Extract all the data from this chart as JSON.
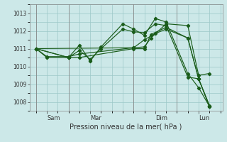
{
  "background_color": "#cce8e8",
  "grid_color": "#9cc8c8",
  "line_color": "#1a5c1a",
  "xlabel": "Pression niveau de la mer( hPa )",
  "ylim": [
    1007.5,
    1013.5
  ],
  "yticks": [
    1008,
    1009,
    1010,
    1011,
    1012,
    1013
  ],
  "x_tick_positions": [
    0.5,
    2.5,
    5.5,
    7.5
  ],
  "x_tick_labels": [
    "Sam",
    "Mar",
    "Dim",
    "Lun"
  ],
  "vlines_x": [
    0,
    1.5,
    4.5,
    6.5
  ],
  "xlim": [
    -0.3,
    8.6
  ],
  "lines": [
    {
      "x": [
        0.0,
        0.5,
        1.5,
        2.0,
        4.5,
        5.0,
        5.3,
        6.0,
        7.0,
        7.5,
        8.0
      ],
      "y": [
        1011.0,
        1010.5,
        1010.5,
        1010.5,
        1011.0,
        1011.0,
        1011.8,
        1012.2,
        1011.6,
        1009.3,
        1007.8
      ]
    },
    {
      "x": [
        0.0,
        0.5,
        1.5,
        2.0,
        4.5,
        5.0,
        5.3,
        6.0,
        7.0,
        7.5,
        8.0
      ],
      "y": [
        1011.0,
        1010.55,
        1010.55,
        1010.7,
        1011.05,
        1011.1,
        1011.6,
        1012.4,
        1012.3,
        1009.5,
        1009.6
      ]
    },
    {
      "x": [
        0.0,
        1.5,
        2.0,
        2.5,
        3.0,
        4.0,
        4.5,
        5.0,
        5.5,
        6.0,
        7.0,
        7.5,
        8.0
      ],
      "y": [
        1011.0,
        1010.5,
        1011.2,
        1010.3,
        1011.1,
        1012.4,
        1012.1,
        1011.75,
        1012.7,
        1012.5,
        1009.6,
        1008.8,
        1007.75
      ]
    },
    {
      "x": [
        0.0,
        1.5,
        2.0,
        2.5,
        3.0,
        4.0,
        4.5,
        5.0,
        5.5,
        6.0,
        7.0,
        7.5,
        8.0
      ],
      "y": [
        1011.0,
        1010.5,
        1010.9,
        1010.4,
        1011.0,
        1012.1,
        1011.95,
        1011.9,
        1012.4,
        1012.3,
        1009.4,
        1009.3,
        1007.75
      ]
    },
    {
      "x": [
        0.0,
        4.5,
        5.0,
        5.5,
        6.0,
        7.0,
        7.5,
        8.0
      ],
      "y": [
        1011.0,
        1011.05,
        1011.5,
        1011.85,
        1012.1,
        1011.6,
        1009.3,
        1007.75
      ]
    }
  ]
}
